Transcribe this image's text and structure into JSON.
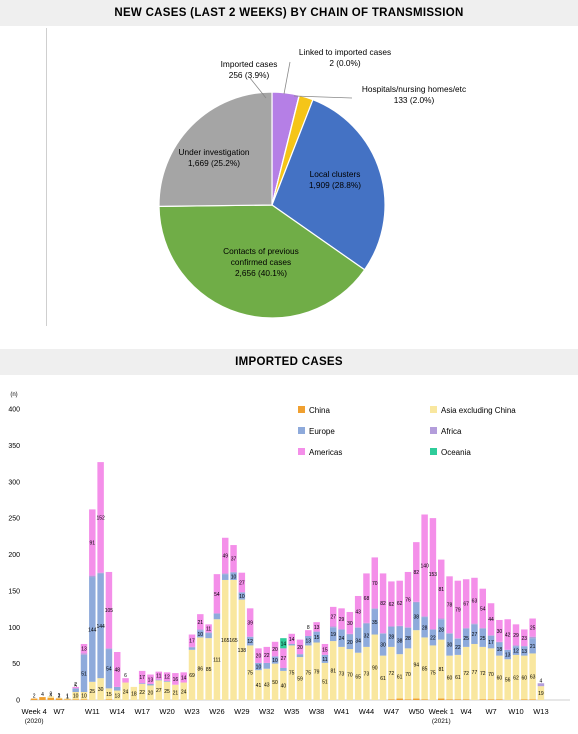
{
  "pie_section": {
    "title": "NEW CASES (LAST 2 WEEKS) BY CHAIN OF TRANSMISSION"
  },
  "bar_section": {
    "title": "IMPORTED CASES"
  },
  "chart_data": [
    {
      "type": "pie",
      "title": "NEW CASES (LAST 2 WEEKS) BY CHAIN OF TRANSMISSION",
      "slices": [
        {
          "label": "Imported cases",
          "value_text": "256 (3.9%)",
          "value": 256,
          "color": "#b57fe6"
        },
        {
          "label": "Linked to imported cases",
          "value_text": "2 (0.0%)",
          "value": 2,
          "color": "#f4a020"
        },
        {
          "label": "Hospitals/nursing homes/etc",
          "value_text": "133 (2.0%)",
          "value": 133,
          "color": "#f5c518"
        },
        {
          "label": "Local clusters",
          "value_text": "1,909 (28.8%)",
          "value": 1909,
          "color": "#4472c4"
        },
        {
          "label": "Contacts of previous confirmed cases",
          "value_text": "2,656 (40.1%)",
          "value": 2656,
          "color": "#70ad47"
        },
        {
          "label": "Under investigation",
          "value_text": "1,669 (25.2%)",
          "value": 1669,
          "color": "#a5a5a5"
        }
      ]
    },
    {
      "type": "bar",
      "title": "IMPORTED CASES",
      "ylabel": "(n)",
      "ylim": [
        0,
        400
      ],
      "yticks": [
        0,
        50,
        100,
        150,
        200,
        250,
        300,
        350,
        400
      ],
      "x_tick_labels": [
        {
          "week": 1,
          "text": "Week 4",
          "sub": "(2020)"
        },
        {
          "week": 4,
          "text": "W7"
        },
        {
          "week": 8,
          "text": "W11"
        },
        {
          "week": 11,
          "text": "W14"
        },
        {
          "week": 14,
          "text": "W17"
        },
        {
          "week": 17,
          "text": "W20"
        },
        {
          "week": 20,
          "text": "W23"
        },
        {
          "week": 23,
          "text": "W26"
        },
        {
          "week": 26,
          "text": "W29"
        },
        {
          "week": 29,
          "text": "W32"
        },
        {
          "week": 32,
          "text": "W35"
        },
        {
          "week": 35,
          "text": "W38"
        },
        {
          "week": 38,
          "text": "W41"
        },
        {
          "week": 41,
          "text": "W44"
        },
        {
          "week": 44,
          "text": "W47"
        },
        {
          "week": 47,
          "text": "W50"
        },
        {
          "week": 50,
          "text": "Week 1",
          "sub": "(2021)"
        },
        {
          "week": 53,
          "text": "W4"
        },
        {
          "week": 56,
          "text": "W7"
        },
        {
          "week": 59,
          "text": "W10"
        },
        {
          "week": 62,
          "text": "W13"
        }
      ],
      "legend": [
        {
          "name": "China",
          "color": "#f0a030"
        },
        {
          "name": "Asia excluding China",
          "color": "#f9e79f"
        },
        {
          "name": "Europe",
          "color": "#8eaadb"
        },
        {
          "name": "Africa",
          "color": "#b39ddb"
        },
        {
          "name": "Americas",
          "color": "#f48fe9"
        },
        {
          "name": "Oceania",
          "color": "#2ecc9a"
        }
      ],
      "series": [
        {
          "name": "China",
          "values": [
            2,
            4,
            3,
            2,
            1,
            1,
            1,
            0,
            0,
            1,
            0,
            0,
            0,
            0,
            0,
            0,
            0,
            0,
            0,
            0,
            0,
            0,
            0,
            0,
            0,
            0,
            0,
            0,
            0,
            0,
            0,
            0,
            0,
            0,
            0,
            0,
            0,
            0,
            0,
            0,
            0,
            0,
            0,
            1,
            2,
            1,
            2,
            1,
            0,
            2,
            1,
            1,
            1,
            0,
            1,
            1,
            1,
            0,
            0,
            1,
            1,
            0,
            0,
            0,
            0
          ]
        },
        {
          "name": "Asia excluding China",
          "values": [
            0,
            0,
            2,
            1,
            1,
            10,
            10,
            25,
            30,
            15,
            13,
            24,
            18,
            22,
            20,
            27,
            25,
            21,
            24,
            69,
            86,
            85,
            111,
            165,
            165,
            138,
            75,
            41,
            43,
            50,
            40,
            75,
            59,
            75,
            79,
            51,
            81,
            73,
            70,
            65,
            73,
            90,
            61,
            72,
            61,
            70,
            94,
            85,
            75,
            81,
            60,
            61,
            72,
            77,
            72,
            70,
            60,
            56,
            62,
            60,
            63,
            19,
            0,
            0,
            0
          ]
        },
        {
          "name": "Europe",
          "values": [
            0,
            0,
            0,
            0,
            0,
            5,
            51,
            144,
            144,
            54,
            5,
            0,
            0,
            1,
            2,
            1,
            1,
            0,
            0,
            3,
            10,
            7,
            8,
            8,
            10,
            10,
            12,
            10,
            8,
            10,
            4,
            2,
            4,
            13,
            15,
            11,
            19,
            24,
            20,
            34,
            32,
            35,
            30,
            28,
            38,
            28,
            38,
            28,
            22,
            28,
            30,
            22,
            25,
            27,
            25,
            17,
            18,
            13,
            12,
            13,
            21,
            0,
            0,
            0,
            0
          ]
        },
        {
          "name": "Africa",
          "values": [
            0,
            0,
            0,
            0,
            0,
            0,
            2,
            2,
            1,
            1,
            0,
            0,
            0,
            0,
            0,
            0,
            0,
            0,
            0,
            1,
            1,
            1,
            0,
            1,
            1,
            0,
            0,
            0,
            0,
            0,
            0,
            0,
            0,
            0,
            0,
            0,
            1,
            0,
            1,
            1,
            1,
            1,
            1,
            0,
            1,
            1,
            1,
            1,
            0,
            1,
            1,
            1,
            1,
            1,
            1,
            1,
            1,
            0,
            1,
            0,
            2,
            4,
            0,
            0,
            0
          ]
        },
        {
          "name": "Americas",
          "values": [
            0,
            0,
            0,
            0,
            0,
            2,
            13,
            91,
            152,
            105,
            48,
            6,
            0,
            17,
            13,
            11,
            12,
            16,
            14,
            17,
            21,
            11,
            54,
            49,
            37,
            27,
            39,
            20,
            22,
            20,
            27,
            14,
            20,
            8,
            13,
            15,
            27,
            29,
            30,
            43,
            68,
            70,
            82,
            62,
            62,
            76,
            82,
            140,
            153,
            81,
            78,
            79,
            67,
            63,
            54,
            44,
            30,
            42,
            29,
            23,
            25,
            0,
            0,
            0,
            0
          ]
        },
        {
          "name": "Oceania",
          "values": [
            0,
            0,
            0,
            0,
            0,
            0,
            0,
            0,
            0,
            0,
            0,
            0,
            0,
            0,
            0,
            0,
            0,
            0,
            0,
            0,
            0,
            0,
            0,
            0,
            0,
            0,
            0,
            0,
            0,
            0,
            14,
            0,
            0,
            0,
            0,
            0,
            0,
            0,
            0,
            0,
            0,
            0,
            0,
            0,
            0,
            0,
            0,
            0,
            0,
            0,
            0,
            0,
            0,
            0,
            0,
            0,
            0,
            0,
            0,
            0,
            0,
            0,
            0,
            0,
            0
          ]
        }
      ]
    }
  ]
}
